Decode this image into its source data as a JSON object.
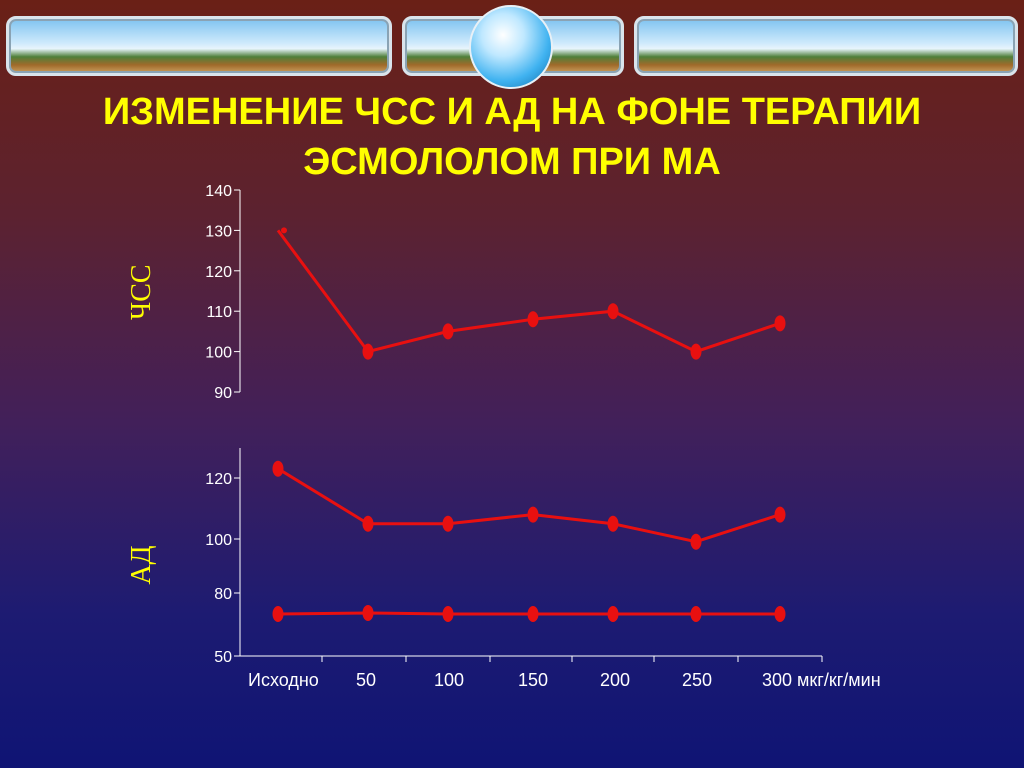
{
  "title_line1": "ИЗМЕНЕНИЕ ЧСС И АД НА ФОНЕ ТЕРАПИИ",
  "title_line2": "ЭСМОЛОЛОМ ПРИ МА",
  "colors": {
    "title": "#ffff00",
    "series": "#e81010",
    "axis": "#ffffff"
  },
  "chart_data": [
    {
      "type": "line",
      "ylabel": "ЧСС",
      "ylim": [
        90,
        140
      ],
      "yticks": [
        90,
        100,
        110,
        120,
        130,
        140
      ],
      "categories": [
        "Исходно",
        "50",
        "100",
        "150",
        "200",
        "250",
        "300"
      ],
      "series": [
        {
          "values": [
            130,
            100,
            105,
            108,
            110,
            100,
            107
          ]
        }
      ]
    },
    {
      "type": "line",
      "ylabel": "АД",
      "ylim": [
        50,
        130
      ],
      "yticks": [
        50,
        80,
        100,
        120
      ],
      "categories": [
        "Исходно",
        "50",
        "100",
        "150",
        "200",
        "250",
        "300"
      ],
      "category_labels": [
        "Исходно",
        "50",
        "100",
        "150",
        "200",
        "250",
        "300 мкг/кг/мин"
      ],
      "series": [
        {
          "values": [
            123,
            105,
            105,
            108,
            105,
            99,
            108
          ]
        },
        {
          "values": [
            70,
            70.5,
            70,
            70,
            70,
            70,
            70
          ]
        }
      ]
    }
  ]
}
